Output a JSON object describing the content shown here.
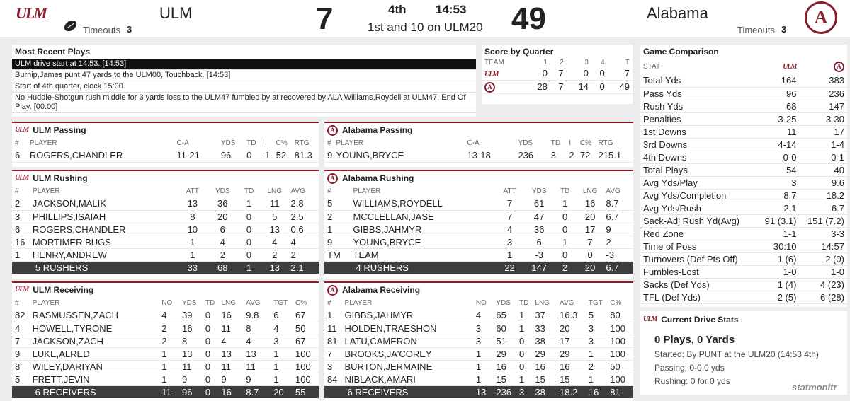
{
  "header": {
    "away_team": "ULM",
    "away_logo": "ULM",
    "away_score": "7",
    "away_timeouts_label": "Timeouts",
    "away_timeouts": "3",
    "quarter": "4th",
    "clock": "14:53",
    "down_distance": "1st and 10 on ULM20",
    "home_score": "49",
    "home_team": "Alabama",
    "home_logo": "A",
    "home_timeouts_label": "Timeouts",
    "home_timeouts": "3",
    "possession_icon": "football-icon"
  },
  "recent_plays": {
    "title": "Most Recent Plays",
    "items": [
      "ULM drive start at 14:53. [14:53]",
      "Burnip,James punt 47 yards to the ULM00, Touchback. [14:53]",
      "Start of 4th quarter, clock 15:00.",
      "No Huddle-Shotgun rush middle for 3 yards loss to the ULM47 fumbled by at recovered by ALA Williams,Roydell at ULM47, End Of Play. [00:00]"
    ]
  },
  "score_by_quarter": {
    "title": "Score by Quarter",
    "headers": [
      "TEAM",
      "1",
      "2",
      "3",
      "4",
      "T"
    ],
    "rows": [
      {
        "team": "ULM",
        "q": [
          "0",
          "7",
          "0",
          "0",
          "7"
        ]
      },
      {
        "team": "A",
        "q": [
          "28",
          "7",
          "14",
          "0",
          "49"
        ]
      }
    ]
  },
  "game_comparison": {
    "title": "Game Comparison",
    "stat_header": "STAT",
    "away_logo": "ULM",
    "home_logo": "A",
    "rows": [
      [
        "Total Yds",
        "164",
        "383"
      ],
      [
        "Pass Yds",
        "96",
        "236"
      ],
      [
        "Rush Yds",
        "68",
        "147"
      ],
      [
        "Penalties",
        "3-25",
        "3-30"
      ],
      [
        "1st Downs",
        "11",
        "17"
      ],
      [
        "3rd Downs",
        "4-14",
        "1-4"
      ],
      [
        "4th Downs",
        "0-0",
        "0-1"
      ],
      [
        "Total Plays",
        "54",
        "40"
      ],
      [
        "Avg Yds/Play",
        "3",
        "9.6"
      ],
      [
        "Avg Yds/Completion",
        "8.7",
        "18.2"
      ],
      [
        "Avg Yds/Rush",
        "2.1",
        "6.7"
      ],
      [
        "Sack-Adj Rush Yd(Avg)",
        "91 (3.1)",
        "151 (7.2)"
      ],
      [
        "Red Zone",
        "1-1",
        "3-3"
      ],
      [
        "Time of Poss",
        "30:10",
        "14:57"
      ],
      [
        "Turnovers (Def Pts Off)",
        "1 (6)",
        "2 (0)"
      ],
      [
        "Fumbles-Lost",
        "1-0",
        "1-0"
      ],
      [
        "Sacks (Def Yds)",
        "1 (4)",
        "4 (23)"
      ],
      [
        "TFL (Def Yds)",
        "2 (5)",
        "6 (28)"
      ]
    ]
  },
  "current_drive": {
    "title": "Current Drive Stats",
    "headline": "0 Plays, 0 Yards",
    "started": "Started: By PUNT at the ULM20 (14:53 4th)",
    "passing": "Passing: 0-0 0 yds",
    "rushing": "Rushing: 0 for 0 yds"
  },
  "ulm_passing": {
    "title": "ULM Passing",
    "headers": [
      "#",
      "PLAYER",
      "C-A",
      "YDS",
      "TD",
      "I",
      "C%",
      "RTG"
    ],
    "rows": [
      [
        "6",
        "ROGERS,CHANDLER",
        "11-21",
        "96",
        "0",
        "1",
        "52",
        "81.3"
      ]
    ]
  },
  "bama_passing": {
    "title": "Alabama Passing",
    "headers": [
      "#",
      "PLAYER",
      "C-A",
      "YDS",
      "TD",
      "I",
      "C%",
      "RTG"
    ],
    "rows": [
      [
        "9",
        "YOUNG,BRYCE",
        "13-18",
        "236",
        "3",
        "2",
        "72",
        "215.1"
      ]
    ]
  },
  "ulm_rushing": {
    "title": "ULM Rushing",
    "headers": [
      "#",
      "PLAYER",
      "ATT",
      "YDS",
      "TD",
      "LNG",
      "AVG"
    ],
    "rows": [
      [
        "2",
        "JACKSON,MALIK",
        "13",
        "36",
        "1",
        "11",
        "2.8"
      ],
      [
        "3",
        "PHILLIPS,ISAIAH",
        "8",
        "20",
        "0",
        "5",
        "2.5"
      ],
      [
        "6",
        "ROGERS,CHANDLER",
        "10",
        "6",
        "0",
        "13",
        "0.6"
      ],
      [
        "16",
        "MORTIMER,BUGS",
        "1",
        "4",
        "0",
        "4",
        "4"
      ],
      [
        "1",
        "HENRY,ANDREW",
        "1",
        "2",
        "0",
        "2",
        "2"
      ]
    ],
    "total": [
      "",
      "5 RUSHERS",
      "33",
      "68",
      "1",
      "13",
      "2.1"
    ]
  },
  "bama_rushing": {
    "title": "Alabama Rushing",
    "headers": [
      "#",
      "PLAYER",
      "ATT",
      "YDS",
      "TD",
      "LNG",
      "AVG"
    ],
    "rows": [
      [
        "5",
        "WILLIAMS,ROYDELL",
        "7",
        "61",
        "1",
        "16",
        "8.7"
      ],
      [
        "2",
        "MCCLELLAN,JASE",
        "7",
        "47",
        "0",
        "20",
        "6.7"
      ],
      [
        "1",
        "GIBBS,JAHMYR",
        "4",
        "36",
        "0",
        "17",
        "9"
      ],
      [
        "9",
        "YOUNG,BRYCE",
        "3",
        "6",
        "1",
        "7",
        "2"
      ],
      [
        "TM",
        "TEAM",
        "1",
        "-3",
        "0",
        "0",
        "-3"
      ]
    ],
    "total": [
      "",
      "4 RUSHERS",
      "22",
      "147",
      "2",
      "20",
      "6.7"
    ]
  },
  "ulm_receiving": {
    "title": "ULM Receiving",
    "headers": [
      "#",
      "PLAYER",
      "NO",
      "YDS",
      "TD",
      "LNG",
      "AVG",
      "TGT",
      "C%"
    ],
    "rows": [
      [
        "82",
        "RASMUSSEN,ZACH",
        "4",
        "39",
        "0",
        "16",
        "9.8",
        "6",
        "67"
      ],
      [
        "4",
        "HOWELL,TYRONE",
        "2",
        "16",
        "0",
        "11",
        "8",
        "4",
        "50"
      ],
      [
        "7",
        "JACKSON,ZACH",
        "2",
        "8",
        "0",
        "4",
        "4",
        "3",
        "67"
      ],
      [
        "9",
        "LUKE,ALRED",
        "1",
        "13",
        "0",
        "13",
        "13",
        "1",
        "100"
      ],
      [
        "8",
        "WILEY,DARIYAN",
        "1",
        "11",
        "0",
        "11",
        "11",
        "1",
        "100"
      ],
      [
        "5",
        "FRETT,JEVIN",
        "1",
        "9",
        "0",
        "9",
        "9",
        "1",
        "100"
      ]
    ],
    "total": [
      "",
      "6 RECEIVERS",
      "11",
      "96",
      "0",
      "16",
      "8.7",
      "20",
      "55"
    ]
  },
  "bama_receiving": {
    "title": "Alabama Receiving",
    "headers": [
      "#",
      "PLAYER",
      "NO",
      "YDS",
      "TD",
      "LNG",
      "AVG",
      "TGT",
      "C%"
    ],
    "rows": [
      [
        "1",
        "GIBBS,JAHMYR",
        "4",
        "65",
        "1",
        "37",
        "16.3",
        "5",
        "80"
      ],
      [
        "11",
        "HOLDEN,TRAESHON",
        "3",
        "60",
        "1",
        "33",
        "20",
        "3",
        "100"
      ],
      [
        "81",
        "LATU,CAMERON",
        "3",
        "51",
        "0",
        "38",
        "17",
        "3",
        "100"
      ],
      [
        "7",
        "BROOKS,JA'COREY",
        "1",
        "29",
        "0",
        "29",
        "29",
        "1",
        "100"
      ],
      [
        "3",
        "BURTON,JERMAINE",
        "1",
        "16",
        "0",
        "16",
        "16",
        "2",
        "50"
      ],
      [
        "84",
        "NIBLACK,AMARI",
        "1",
        "15",
        "1",
        "15",
        "15",
        "1",
        "100"
      ]
    ],
    "total": [
      "",
      "6 RECEIVERS",
      "13",
      "236",
      "3",
      "38",
      "18.2",
      "16",
      "81"
    ]
  },
  "watermark": "statmonitr"
}
